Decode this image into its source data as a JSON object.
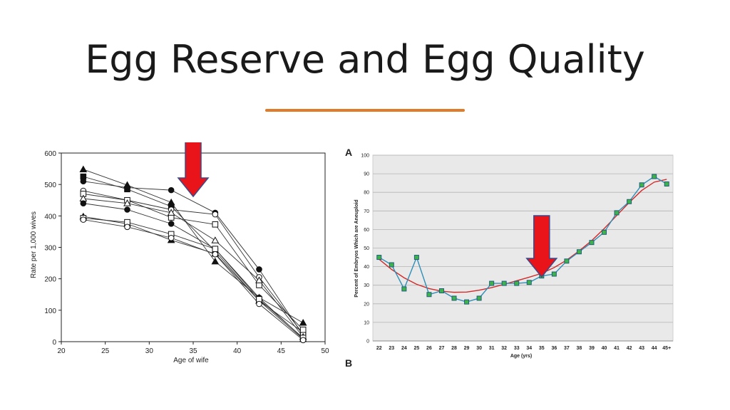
{
  "slide": {
    "title": "Egg Reserve and Egg Quality",
    "accent_color": "#e07b2a"
  },
  "chart_data": [
    {
      "type": "line",
      "title": "",
      "xlabel": "Age of wife",
      "ylabel": "Rate per 1,000 wives",
      "xlim": [
        20,
        50
      ],
      "ylim": [
        0,
        600
      ],
      "x_ticks": [
        20,
        25,
        30,
        35,
        40,
        45,
        50
      ],
      "y_ticks": [
        0,
        100,
        200,
        300,
        400,
        500,
        600
      ],
      "grid": false,
      "x": [
        22.5,
        27.5,
        32.5,
        37.5,
        42.5,
        47.5
      ],
      "series": [
        {
          "marker": "triangle-filled",
          "values": [
            548,
            498,
            443,
            255,
            140,
            60
          ]
        },
        {
          "marker": "square-filled",
          "values": [
            525,
            485,
            430,
            288,
            130,
            30
          ]
        },
        {
          "marker": "circle-filled",
          "values": [
            510,
            490,
            482,
            410,
            230,
            20
          ]
        },
        {
          "marker": "circle-open",
          "values": [
            480,
            450,
            420,
            405,
            205,
            25
          ]
        },
        {
          "marker": "square-open",
          "values": [
            470,
            450,
            395,
            373,
            180,
            38
          ]
        },
        {
          "marker": "triangle-open",
          "values": [
            455,
            440,
            410,
            322,
            195,
            15
          ]
        },
        {
          "marker": "circle-filled",
          "values": [
            440,
            420,
            375,
            295,
            140,
            10
          ]
        },
        {
          "marker": "triangle-filled",
          "values": [
            398,
            375,
            323,
            280,
            130,
            8
          ]
        },
        {
          "marker": "square-open",
          "values": [
            393,
            380,
            342,
            295,
            135,
            12
          ]
        },
        {
          "marker": "circle-open",
          "values": [
            388,
            365,
            330,
            278,
            120,
            5
          ]
        }
      ],
      "annotation": {
        "type": "arrow-down",
        "x": 35,
        "color": "#e8141a"
      }
    },
    {
      "type": "line",
      "panel_label": "A",
      "next_panel_label": "B",
      "title": "",
      "xlabel": "Age (yrs)",
      "ylabel": "Percent of Embryos Which are Aneuploid",
      "ylim": [
        0,
        100
      ],
      "y_ticks": [
        0,
        10,
        20,
        30,
        40,
        50,
        60,
        70,
        80,
        90,
        100
      ],
      "grid": true,
      "categories": [
        "22",
        "23",
        "24",
        "25",
        "26",
        "27",
        "28",
        "29",
        "30",
        "31",
        "32",
        "33",
        "34",
        "35",
        "36",
        "37",
        "38",
        "39",
        "40",
        "41",
        "42",
        "43",
        "44",
        "45+"
      ],
      "series": [
        {
          "style": "observed",
          "color": "#2e8fb8",
          "marker_color": "#3db34a",
          "values": [
            45,
            41,
            28,
            45,
            25,
            27,
            23,
            21,
            23,
            31,
            31,
            31,
            31.5,
            35,
            36,
            43,
            48,
            53,
            58.5,
            69,
            75,
            84,
            88.5,
            84.5
          ]
        },
        {
          "style": "fit",
          "color": "#d42a2a",
          "values": [
            44,
            38.5,
            34,
            30.5,
            28.2,
            26.8,
            26.2,
            26.3,
            27.3,
            28.7,
            30.5,
            32.4,
            34.3,
            36.4,
            39.5,
            43.5,
            48.5,
            54,
            60.5,
            67.5,
            74.5,
            81,
            85.5,
            87
          ]
        }
      ],
      "annotation": {
        "type": "arrow-down",
        "category": "35",
        "color": "#e8141a"
      }
    }
  ]
}
